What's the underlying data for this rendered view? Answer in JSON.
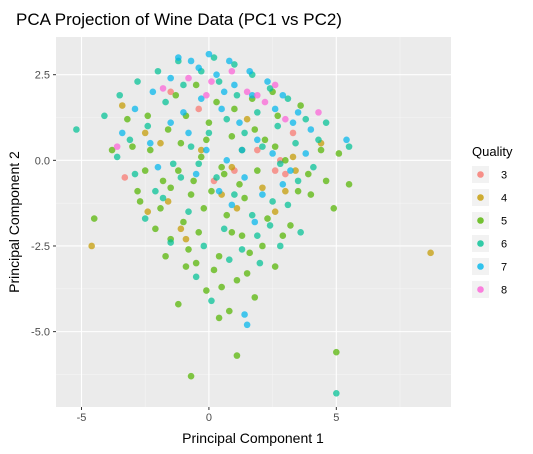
{
  "chart_data": {
    "type": "scatter",
    "title": "PCA Projection of Wine Data (PC1 vs PC2)",
    "xlabel": "Principal Component 1",
    "ylabel": "Principal Component 2",
    "xlim": [
      -6.0,
      9.5
    ],
    "ylim": [
      -7.2,
      3.6
    ],
    "x_ticks": [
      -5,
      0,
      5
    ],
    "y_ticks": [
      2.5,
      0.0,
      -2.5,
      -5.0
    ],
    "x_tick_labels": [
      "-5",
      "0",
      "5"
    ],
    "y_tick_labels": [
      "2.5",
      "0.0",
      "-2.5",
      "-5.0"
    ],
    "grid": true,
    "legend_title": "Quality",
    "legend_position": "right",
    "series": [
      {
        "name": "3",
        "color": "#F8766D",
        "points": [
          [
            -3.3,
            -0.5
          ],
          [
            2.6,
            -0.3
          ],
          [
            3.3,
            0.8
          ],
          [
            -1.5,
            2.0
          ],
          [
            0.2,
            -0.6
          ],
          [
            1.0,
            -0.3
          ],
          [
            1.9,
            0.3
          ],
          [
            -0.4,
            1.5
          ],
          [
            2.8,
            0.0
          ],
          [
            3.0,
            -0.4
          ]
        ]
      },
      {
        "name": "4",
        "color": "#C49A00",
        "points": [
          [
            -4.6,
            -2.5
          ],
          [
            8.7,
            -2.7
          ],
          [
            -3.4,
            1.6
          ],
          [
            -2.4,
            -1.5
          ],
          [
            -1.1,
            -2.0
          ],
          [
            -0.9,
            -2.3
          ],
          [
            1.1,
            -1.4
          ],
          [
            2.1,
            -0.8
          ],
          [
            3.0,
            -0.9
          ],
          [
            3.4,
            -0.3
          ],
          [
            4.4,
            0.5
          ],
          [
            -1.9,
            0.5
          ],
          [
            0.5,
            -1.0
          ],
          [
            -0.3,
            0.3
          ],
          [
            1.5,
            1.2
          ],
          [
            -2.5,
            0.8
          ],
          [
            2.6,
            -1.5
          ],
          [
            0.9,
            -0.2
          ],
          [
            -1.6,
            -1.2
          ],
          [
            3.3,
            0.1
          ]
        ]
      },
      {
        "name": "5",
        "color": "#53B400",
        "points": [
          [
            -0.7,
            -6.3
          ],
          [
            5.0,
            -5.6
          ],
          [
            1.1,
            -5.7
          ],
          [
            0.8,
            -4.4
          ],
          [
            -0.1,
            -3.8
          ],
          [
            -0.9,
            -3.1
          ],
          [
            -1.5,
            -2.3
          ],
          [
            -1.9,
            -1.4
          ],
          [
            -2.8,
            -0.9
          ],
          [
            -1.2,
            -0.3
          ],
          [
            -0.3,
            0.1
          ],
          [
            0.5,
            -0.2
          ],
          [
            1.2,
            -0.7
          ],
          [
            1.9,
            -0.3
          ],
          [
            2.6,
            0.4
          ],
          [
            3.0,
            0.0
          ],
          [
            3.5,
            -0.9
          ],
          [
            2.3,
            -1.7
          ],
          [
            1.3,
            -2.2
          ],
          [
            0.4,
            -2.8
          ],
          [
            -0.4,
            -2.1
          ],
          [
            -2.3,
            0.3
          ],
          [
            -1.6,
            0.9
          ],
          [
            -0.9,
            1.3
          ],
          [
            0.0,
            1.1
          ],
          [
            0.9,
            0.7
          ],
          [
            1.8,
            0.9
          ],
          [
            2.7,
            1.3
          ],
          [
            3.6,
            1.6
          ],
          [
            4.4,
            0.3
          ],
          [
            5.1,
            0.2
          ],
          [
            5.5,
            -0.7
          ],
          [
            4.9,
            -1.4
          ],
          [
            4.0,
            -1.0
          ],
          [
            3.2,
            -1.9
          ],
          [
            2.1,
            -2.5
          ],
          [
            1.5,
            -3.3
          ],
          [
            0.5,
            -3.7
          ],
          [
            -0.5,
            -3.0
          ],
          [
            -1.0,
            -1.8
          ],
          [
            -1.8,
            -0.6
          ],
          [
            -2.5,
            -0.3
          ],
          [
            -3.0,
            0.4
          ],
          [
            -2.4,
            1.3
          ],
          [
            -1.3,
            1.9
          ],
          [
            -0.5,
            2.2
          ],
          [
            0.3,
            1.7
          ],
          [
            1.0,
            1.5
          ],
          [
            1.7,
            1.8
          ],
          [
            2.5,
            2.0
          ],
          [
            -0.2,
            -1.4
          ],
          [
            0.7,
            -1.6
          ],
          [
            1.4,
            -1.1
          ],
          [
            -0.6,
            -0.6
          ],
          [
            -1.5,
            -0.8
          ],
          [
            0.1,
            -0.9
          ],
          [
            0.9,
            -2.1
          ],
          [
            -0.8,
            -2.6
          ],
          [
            0.2,
            -3.2
          ],
          [
            1.1,
            -3.5
          ],
          [
            -1.2,
            -4.2
          ],
          [
            0.4,
            -4.6
          ],
          [
            1.8,
            -4.0
          ],
          [
            2.6,
            -3.1
          ],
          [
            -4.5,
            -1.7
          ],
          [
            -3.8,
            0.3
          ],
          [
            -3.2,
            1.2
          ],
          [
            -2.7,
            -1.2
          ],
          [
            -2.1,
            -2.0
          ],
          [
            -1.7,
            -2.8
          ],
          [
            3.9,
            -0.4
          ],
          [
            4.6,
            -0.6
          ],
          [
            2.9,
            -2.2
          ],
          [
            1.6,
            -2.7
          ],
          [
            0.6,
            -0.4
          ],
          [
            -0.1,
            0.6
          ],
          [
            1.3,
            0.3
          ],
          [
            2.2,
            0.6
          ],
          [
            -1.1,
            0.5
          ],
          [
            -0.7,
            -1.0
          ]
        ]
      },
      {
        "name": "6",
        "color": "#00C094",
        "points": [
          [
            -5.2,
            0.9
          ],
          [
            5.0,
            -6.8
          ],
          [
            5.5,
            0.4
          ],
          [
            4.6,
            1.1
          ],
          [
            4.1,
            -0.2
          ],
          [
            3.4,
            0.5
          ],
          [
            2.7,
            1.0
          ],
          [
            1.9,
            1.4
          ],
          [
            1.1,
            1.9
          ],
          [
            0.4,
            2.3
          ],
          [
            -0.3,
            2.6
          ],
          [
            -1.0,
            2.2
          ],
          [
            -1.7,
            1.7
          ],
          [
            -2.4,
            1.0
          ],
          [
            -3.1,
            0.6
          ],
          [
            -3.6,
            0.1
          ],
          [
            -2.9,
            -0.4
          ],
          [
            -2.1,
            -0.9
          ],
          [
            -1.4,
            -0.1
          ],
          [
            -0.7,
            0.4
          ],
          [
            0.0,
            0.8
          ],
          [
            0.7,
            1.2
          ],
          [
            1.4,
            0.8
          ],
          [
            2.1,
            0.4
          ],
          [
            2.8,
            -0.1
          ],
          [
            3.5,
            -0.6
          ],
          [
            3.1,
            -1.3
          ],
          [
            2.4,
            -1.9
          ],
          [
            1.7,
            -1.6
          ],
          [
            1.0,
            -1.0
          ],
          [
            0.3,
            -0.5
          ],
          [
            -0.4,
            -0.1
          ],
          [
            -1.1,
            -0.5
          ],
          [
            -1.8,
            -1.1
          ],
          [
            -2.5,
            -1.7
          ],
          [
            -1.5,
            -2.4
          ],
          [
            -0.8,
            -1.5
          ],
          [
            0.6,
            -2.0
          ],
          [
            1.3,
            -2.6
          ],
          [
            2.0,
            -3.0
          ],
          [
            2.8,
            -2.5
          ],
          [
            3.6,
            -2.1
          ],
          [
            -4.1,
            1.3
          ],
          [
            -3.5,
            1.9
          ],
          [
            -2.8,
            2.3
          ],
          [
            -2.0,
            2.6
          ],
          [
            -1.2,
            2.9
          ],
          [
            0.2,
            3.0
          ],
          [
            1.0,
            2.8
          ],
          [
            1.7,
            2.5
          ],
          [
            2.4,
            2.1
          ],
          [
            3.1,
            1.8
          ],
          [
            3.8,
            1.2
          ],
          [
            4.3,
            0.6
          ],
          [
            -0.2,
            -2.5
          ],
          [
            0.8,
            -2.9
          ],
          [
            -0.5,
            -3.4
          ],
          [
            0.1,
            -4.1
          ],
          [
            1.9,
            -2.2
          ],
          [
            2.5,
            -1.2
          ]
        ]
      },
      {
        "name": "7",
        "color": "#00B6EB",
        "points": [
          [
            1.4,
            -4.5
          ],
          [
            1.5,
            -4.8
          ],
          [
            -0.7,
            2.9
          ],
          [
            0.0,
            3.1
          ],
          [
            0.8,
            2.9
          ],
          [
            1.6,
            2.6
          ],
          [
            2.3,
            2.3
          ],
          [
            2.9,
            1.9
          ],
          [
            3.5,
            1.4
          ],
          [
            4.0,
            0.9
          ],
          [
            5.4,
            0.6
          ],
          [
            -1.5,
            2.4
          ],
          [
            -2.2,
            2.0
          ],
          [
            -2.9,
            1.5
          ],
          [
            -3.4,
            0.8
          ],
          [
            -1.0,
            1.4
          ],
          [
            -0.3,
            1.8
          ],
          [
            0.5,
            1.5
          ],
          [
            1.2,
            1.1
          ],
          [
            1.9,
            0.6
          ],
          [
            2.5,
            0.2
          ],
          [
            3.2,
            -0.3
          ],
          [
            2.1,
            -1.0
          ],
          [
            1.4,
            -0.5
          ],
          [
            0.7,
            0.0
          ],
          [
            -0.1,
            0.3
          ],
          [
            -0.8,
            0.8
          ],
          [
            -1.5,
            1.1
          ],
          [
            -2.3,
            0.5
          ],
          [
            -2.0,
            -0.2
          ],
          [
            0.3,
            2.5
          ],
          [
            1.0,
            2.2
          ],
          [
            1.7,
            1.9
          ],
          [
            2.6,
            1.5
          ],
          [
            3.3,
            1.1
          ],
          [
            -1.2,
            3.0
          ],
          [
            -0.4,
            2.7
          ],
          [
            0.6,
            2.0
          ],
          [
            1.3,
            0.3
          ],
          [
            0.4,
            -0.9
          ],
          [
            -0.5,
            -0.4
          ],
          [
            2.9,
            -0.7
          ],
          [
            3.8,
            0.2
          ],
          [
            1.8,
            -1.8
          ],
          [
            0.9,
            -1.3
          ]
        ]
      },
      {
        "name": "8",
        "color": "#FB61D7",
        "points": [
          [
            -0.8,
            2.4
          ],
          [
            0.1,
            2.3
          ],
          [
            1.9,
            1.9
          ],
          [
            2.2,
            1.7
          ],
          [
            3.0,
            1.2
          ],
          [
            4.3,
            1.4
          ],
          [
            -1.8,
            2.1
          ],
          [
            -3.6,
            0.4
          ],
          [
            0.9,
            2.6
          ],
          [
            1.5,
            2.0
          ],
          [
            -0.1,
            1.9
          ],
          [
            2.6,
            2.2
          ]
        ]
      }
    ]
  }
}
